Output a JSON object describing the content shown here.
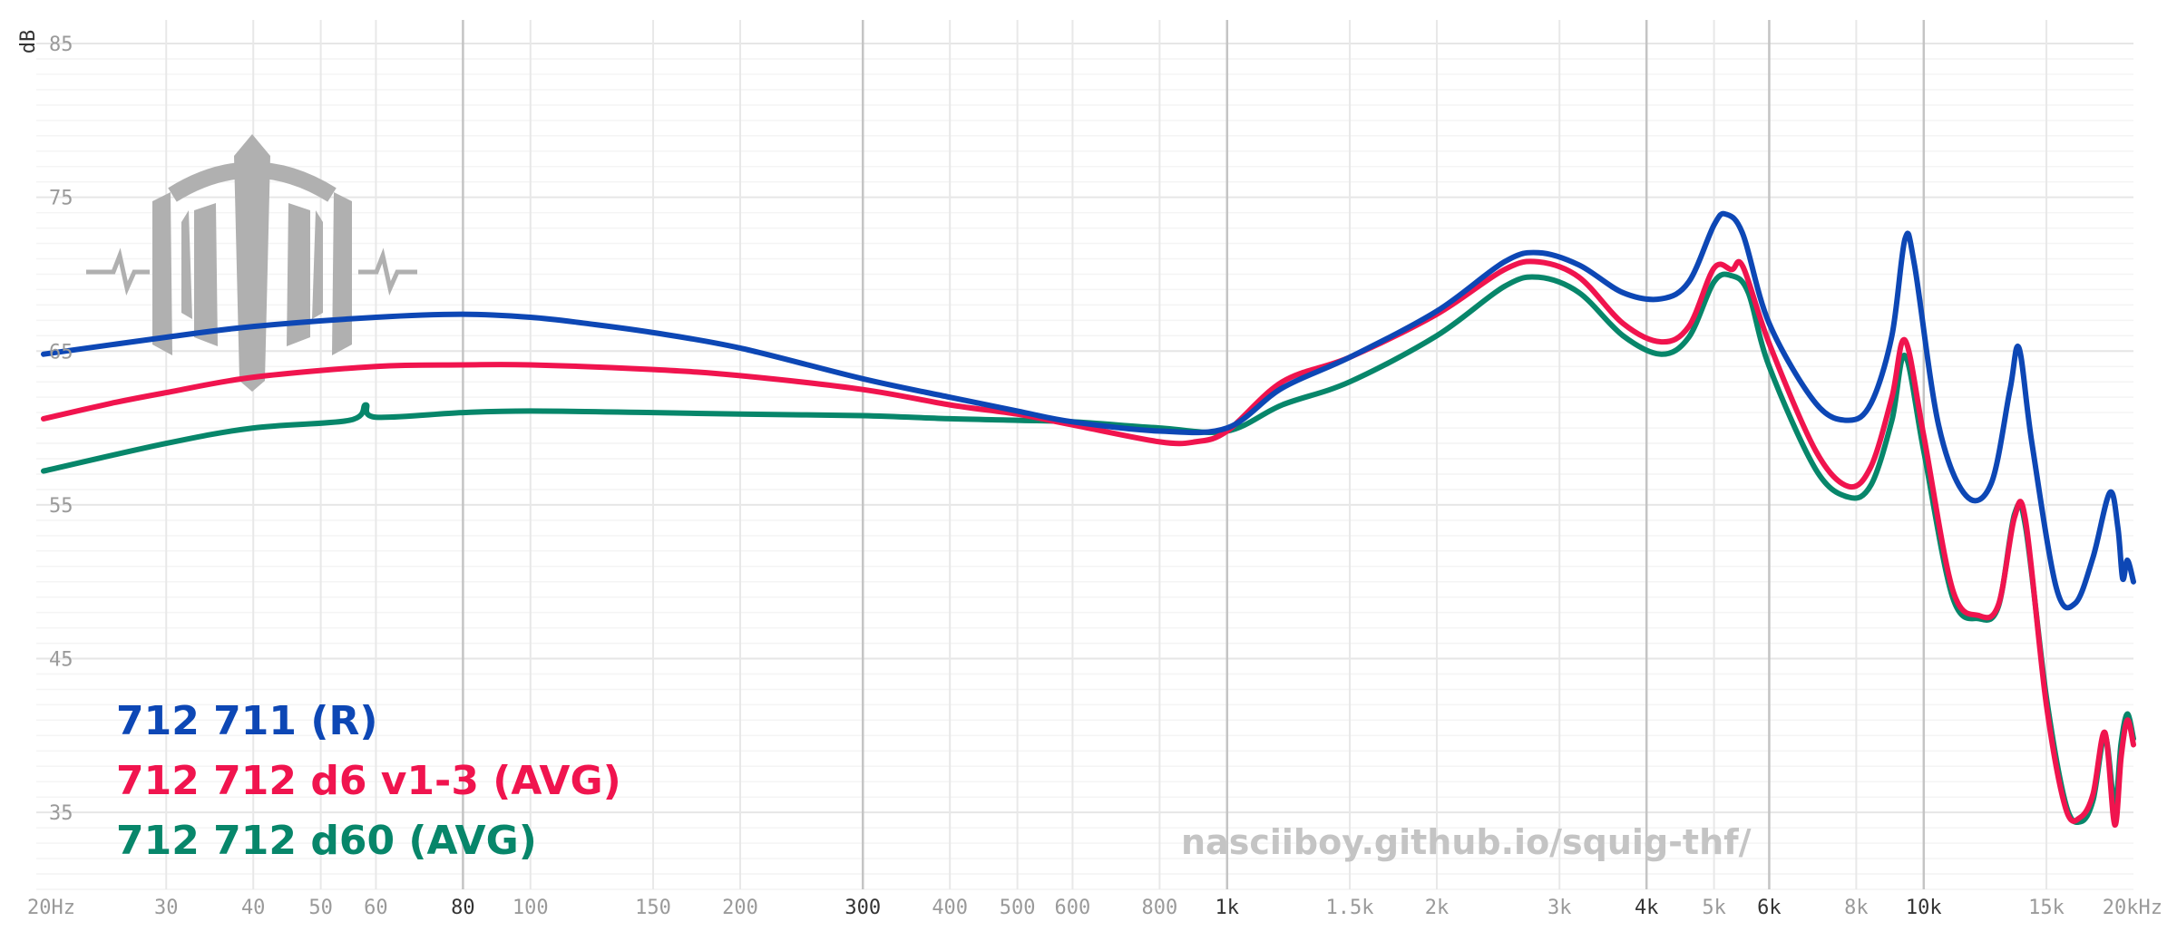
{
  "chart_data": {
    "type": "line",
    "title": "",
    "xlabel": "",
    "ylabel": "dB",
    "xscale": "log",
    "xlim": [
      20,
      20000
    ],
    "ylim": [
      30,
      85
    ],
    "grid": true,
    "legend_position": "bottom-left",
    "y_ticks": [
      {
        "value": 85,
        "label": "85"
      },
      {
        "value": 75,
        "label": "75"
      },
      {
        "value": 65,
        "label": "65"
      },
      {
        "value": 55,
        "label": "55"
      },
      {
        "value": 45,
        "label": "45"
      },
      {
        "value": 35,
        "label": "35"
      }
    ],
    "x_ticks": [
      {
        "value": 20,
        "label": "20Hz",
        "emph": false
      },
      {
        "value": 30,
        "label": "30",
        "emph": false
      },
      {
        "value": 40,
        "label": "40",
        "emph": false
      },
      {
        "value": 50,
        "label": "50",
        "emph": false
      },
      {
        "value": 60,
        "label": "60",
        "emph": false
      },
      {
        "value": 80,
        "label": "80",
        "emph": true
      },
      {
        "value": 100,
        "label": "100",
        "emph": false
      },
      {
        "value": 150,
        "label": "150",
        "emph": false
      },
      {
        "value": 200,
        "label": "200",
        "emph": false
      },
      {
        "value": 300,
        "label": "300",
        "emph": true
      },
      {
        "value": 400,
        "label": "400",
        "emph": false
      },
      {
        "value": 500,
        "label": "500",
        "emph": false
      },
      {
        "value": 600,
        "label": "600",
        "emph": false
      },
      {
        "value": 800,
        "label": "800",
        "emph": false
      },
      {
        "value": 1000,
        "label": "1k",
        "emph": true
      },
      {
        "value": 1500,
        "label": "1.5k",
        "emph": false
      },
      {
        "value": 2000,
        "label": "2k",
        "emph": false
      },
      {
        "value": 3000,
        "label": "3k",
        "emph": false
      },
      {
        "value": 4000,
        "label": "4k",
        "emph": true
      },
      {
        "value": 5000,
        "label": "5k",
        "emph": false
      },
      {
        "value": 6000,
        "label": "6k",
        "emph": true
      },
      {
        "value": 8000,
        "label": "8k",
        "emph": false
      },
      {
        "value": 10000,
        "label": "10k",
        "emph": true
      },
      {
        "value": 15000,
        "label": "15k",
        "emph": false
      },
      {
        "value": 20000,
        "label": "20kHz",
        "emph": false
      }
    ],
    "series": [
      {
        "name": "712 711 (R)",
        "color": "#0d47b5",
        "points": [
          [
            20,
            64.8
          ],
          [
            30,
            65.9
          ],
          [
            40,
            66.6
          ],
          [
            60,
            67.2
          ],
          [
            80,
            67.4
          ],
          [
            100,
            67.2
          ],
          [
            120,
            66.8
          ],
          [
            150,
            66.2
          ],
          [
            200,
            65.2
          ],
          [
            300,
            63.2
          ],
          [
            400,
            62.0
          ],
          [
            500,
            61.1
          ],
          [
            600,
            60.4
          ],
          [
            800,
            59.8
          ],
          [
            1000,
            60.0
          ],
          [
            1200,
            62.6
          ],
          [
            1500,
            64.6
          ],
          [
            2000,
            67.6
          ],
          [
            2500,
            70.8
          ],
          [
            2800,
            71.4
          ],
          [
            3200,
            70.6
          ],
          [
            3700,
            68.8
          ],
          [
            4200,
            68.4
          ],
          [
            4600,
            69.5
          ],
          [
            5000,
            73.2
          ],
          [
            5200,
            73.9
          ],
          [
            5500,
            72.6
          ],
          [
            6000,
            66.8
          ],
          [
            7000,
            61.6
          ],
          [
            7800,
            60.5
          ],
          [
            8400,
            61.6
          ],
          [
            9000,
            66.0
          ],
          [
            9400,
            72.3
          ],
          [
            9700,
            70.6
          ],
          [
            10500,
            60.2
          ],
          [
            11500,
            55.6
          ],
          [
            12500,
            56.4
          ],
          [
            13300,
            62.5
          ],
          [
            13700,
            65.2
          ],
          [
            14300,
            59.0
          ],
          [
            15500,
            49.6
          ],
          [
            16500,
            48.6
          ],
          [
            17500,
            51.6
          ],
          [
            18500,
            55.8
          ],
          [
            19000,
            53.5
          ],
          [
            19300,
            50.2
          ],
          [
            19600,
            51.4
          ],
          [
            20000,
            50.0
          ]
        ]
      },
      {
        "name": "712 712 d6 v1-3 (AVG)",
        "color": "#f0144e",
        "points": [
          [
            20,
            60.6
          ],
          [
            25,
            61.6
          ],
          [
            30,
            62.3
          ],
          [
            40,
            63.3
          ],
          [
            60,
            64.0
          ],
          [
            80,
            64.1
          ],
          [
            100,
            64.1
          ],
          [
            150,
            63.8
          ],
          [
            200,
            63.4
          ],
          [
            300,
            62.5
          ],
          [
            400,
            61.5
          ],
          [
            500,
            60.9
          ],
          [
            600,
            60.2
          ],
          [
            800,
            59.1
          ],
          [
            900,
            59.1
          ],
          [
            1000,
            59.8
          ],
          [
            1200,
            63.0
          ],
          [
            1500,
            64.6
          ],
          [
            2000,
            67.4
          ],
          [
            2500,
            70.3
          ],
          [
            2800,
            70.8
          ],
          [
            3200,
            69.8
          ],
          [
            3700,
            66.8
          ],
          [
            4200,
            65.6
          ],
          [
            4600,
            66.6
          ],
          [
            5000,
            70.4
          ],
          [
            5300,
            70.3
          ],
          [
            5500,
            70.5
          ],
          [
            6000,
            65.5
          ],
          [
            7000,
            58.5
          ],
          [
            7800,
            56.2
          ],
          [
            8400,
            57.5
          ],
          [
            9000,
            62.0
          ],
          [
            9400,
            65.7
          ],
          [
            10000,
            59.5
          ],
          [
            11000,
            49.5
          ],
          [
            12000,
            47.8
          ],
          [
            12800,
            48.5
          ],
          [
            13500,
            54.2
          ],
          [
            14000,
            54.0
          ],
          [
            15000,
            42.0
          ],
          [
            16000,
            35.2
          ],
          [
            16800,
            34.7
          ],
          [
            17500,
            36.2
          ],
          [
            18200,
            40.2
          ],
          [
            18800,
            34.2
          ],
          [
            19200,
            38.6
          ],
          [
            19600,
            41.0
          ],
          [
            20000,
            39.4
          ]
        ]
      },
      {
        "name": "712 712 d60 (AVG)",
        "color": "#07866a",
        "points": [
          [
            20,
            57.2
          ],
          [
            30,
            59.0
          ],
          [
            40,
            60.0
          ],
          [
            55,
            60.5
          ],
          [
            58,
            61.5
          ],
          [
            60,
            60.7
          ],
          [
            80,
            61.0
          ],
          [
            100,
            61.1
          ],
          [
            150,
            61.0
          ],
          [
            200,
            60.9
          ],
          [
            300,
            60.8
          ],
          [
            400,
            60.6
          ],
          [
            500,
            60.5
          ],
          [
            600,
            60.4
          ],
          [
            800,
            60.0
          ],
          [
            1000,
            59.8
          ],
          [
            1200,
            61.5
          ],
          [
            1500,
            63.0
          ],
          [
            2000,
            66.0
          ],
          [
            2500,
            69.2
          ],
          [
            2800,
            69.8
          ],
          [
            3200,
            68.8
          ],
          [
            3700,
            66.0
          ],
          [
            4200,
            64.8
          ],
          [
            4600,
            65.9
          ],
          [
            5000,
            69.5
          ],
          [
            5300,
            69.9
          ],
          [
            5600,
            68.8
          ],
          [
            6000,
            64.0
          ],
          [
            7000,
            57.3
          ],
          [
            7800,
            55.5
          ],
          [
            8400,
            56.3
          ],
          [
            9000,
            60.5
          ],
          [
            9400,
            64.7
          ],
          [
            10000,
            58.5
          ],
          [
            11000,
            49.0
          ],
          [
            12000,
            47.6
          ],
          [
            12800,
            48.4
          ],
          [
            13500,
            54.4
          ],
          [
            14000,
            53.6
          ],
          [
            15000,
            42.5
          ],
          [
            16000,
            35.5
          ],
          [
            16800,
            34.4
          ],
          [
            17500,
            35.8
          ],
          [
            18200,
            40.0
          ],
          [
            18800,
            35.5
          ],
          [
            19200,
            39.5
          ],
          [
            19600,
            41.4
          ],
          [
            20000,
            39.8
          ]
        ]
      }
    ]
  },
  "watermark": {
    "url": "nasciiboy.github.io/squig-thf/",
    "logo": "trident-logo"
  }
}
